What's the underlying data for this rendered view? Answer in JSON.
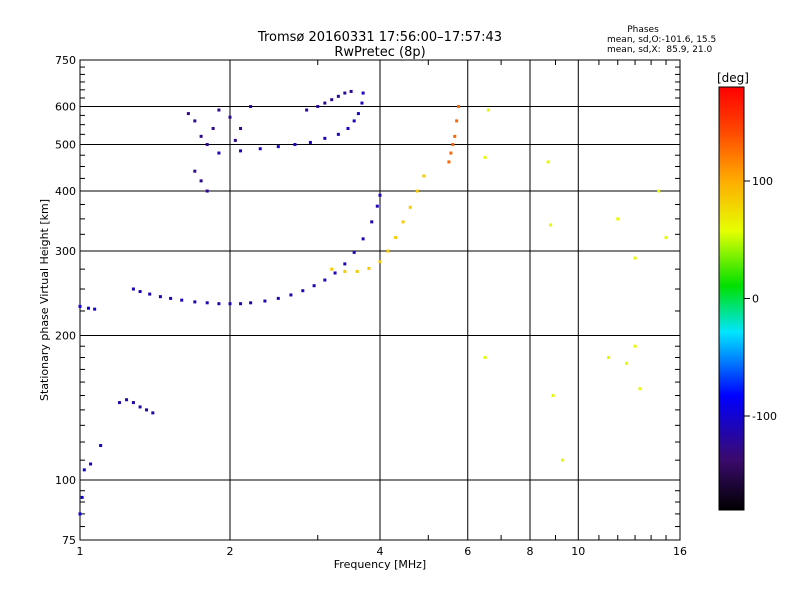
{
  "title": {
    "line1": "Tromsø 20160331 17:56:00–17:57:43",
    "line2": "RwPretec (8p)"
  },
  "phases_box": {
    "heading": "Phases",
    "line_o": "mean, sd,O:-101.6, 15.5",
    "line_x": "mean, sd,X:  85.9, 21.0"
  },
  "colorbar": {
    "unit": "[deg]",
    "tick_labels": [
      "100",
      "0",
      "-100"
    ],
    "tick_values": [
      100,
      0,
      -100
    ],
    "range": [
      -180,
      180
    ]
  },
  "chart_data": {
    "type": "scatter",
    "title": "Tromsø 20160331 17:56:00–17:57:43",
    "subtitle": "RwPretec (8p)",
    "xlabel": "Frequency [MHz]",
    "ylabel": "Stationary phase Virtual Height [km]",
    "x_scale": "log",
    "y_scale": "log",
    "xlim": [
      1,
      16
    ],
    "ylim": [
      75,
      750
    ],
    "x_ticks": [
      1,
      2,
      4,
      6,
      8,
      10,
      16
    ],
    "x_tick_labels": [
      "1",
      "2",
      "4",
      "6",
      "8",
      "10",
      "16"
    ],
    "y_ticks": [
      75,
      100,
      200,
      300,
      400,
      500,
      600,
      750
    ],
    "y_tick_labels": [
      "75",
      "100",
      "200",
      "300",
      "400",
      "500",
      "600",
      "750"
    ],
    "grid": true,
    "color_by": "phase (deg)",
    "series": [
      {
        "trace": "o_low",
        "color_phase": -110,
        "points": [
          [
            1.28,
            250
          ],
          [
            1.32,
            247
          ],
          [
            1.38,
            244
          ],
          [
            1.45,
            241
          ],
          [
            1.52,
            239
          ],
          [
            1.6,
            237
          ],
          [
            1.7,
            235
          ],
          [
            1.8,
            234
          ],
          [
            1.9,
            233
          ],
          [
            2.0,
            233
          ],
          [
            2.1,
            233
          ],
          [
            2.2,
            234
          ],
          [
            2.35,
            236
          ],
          [
            2.5,
            239
          ],
          [
            2.65,
            243
          ],
          [
            2.8,
            248
          ],
          [
            2.95,
            254
          ],
          [
            3.1,
            261
          ],
          [
            3.25,
            270
          ],
          [
            3.4,
            282
          ],
          [
            3.55,
            298
          ],
          [
            3.7,
            318
          ],
          [
            3.85,
            345
          ],
          [
            3.95,
            372
          ],
          [
            4.0,
            392
          ]
        ]
      },
      {
        "trace": "o_high_layer",
        "color_phase": -105,
        "points": [
          [
            1.9,
            480
          ],
          [
            2.1,
            485
          ],
          [
            2.3,
            490
          ],
          [
            2.5,
            495
          ],
          [
            2.7,
            500
          ],
          [
            2.9,
            505
          ],
          [
            3.1,
            515
          ],
          [
            3.3,
            525
          ],
          [
            3.45,
            540
          ],
          [
            3.55,
            560
          ],
          [
            3.62,
            580
          ],
          [
            3.68,
            610
          ],
          [
            3.7,
            640
          ]
        ]
      },
      {
        "trace": "spread_top",
        "color_phase": -120,
        "points": [
          [
            2.85,
            590
          ],
          [
            3.0,
            600
          ],
          [
            3.1,
            610
          ],
          [
            3.2,
            620
          ],
          [
            3.3,
            630
          ],
          [
            3.4,
            640
          ],
          [
            3.5,
            645
          ]
        ]
      },
      {
        "trace": "x_trace",
        "color_phase": 85,
        "points": [
          [
            3.2,
            275
          ],
          [
            3.4,
            272
          ],
          [
            3.6,
            272
          ],
          [
            3.8,
            276
          ],
          [
            4.0,
            285
          ],
          [
            4.15,
            300
          ],
          [
            4.3,
            320
          ],
          [
            4.45,
            345
          ],
          [
            4.6,
            370
          ],
          [
            4.75,
            400
          ],
          [
            4.9,
            430
          ]
        ]
      },
      {
        "trace": "x_top",
        "color_phase": 130,
        "points": [
          [
            5.5,
            460
          ],
          [
            5.55,
            480
          ],
          [
            5.6,
            500
          ],
          [
            5.65,
            520
          ],
          [
            5.7,
            560
          ],
          [
            5.75,
            600
          ]
        ]
      },
      {
        "trace": "low_echo",
        "color_phase": -115,
        "points": [
          [
            1.2,
            145
          ],
          [
            1.24,
            147
          ],
          [
            1.28,
            145
          ],
          [
            1.32,
            142
          ],
          [
            1.36,
            140
          ],
          [
            1.4,
            138
          ]
        ]
      },
      {
        "trace": "spread_f_cluster",
        "color_phase": -125,
        "points": [
          [
            1.65,
            580
          ],
          [
            1.7,
            560
          ],
          [
            1.75,
            520
          ],
          [
            1.8,
            500
          ],
          [
            1.85,
            540
          ],
          [
            1.9,
            590
          ],
          [
            2.0,
            570
          ],
          [
            2.05,
            510
          ],
          [
            2.1,
            540
          ],
          [
            2.2,
            600
          ],
          [
            1.7,
            440
          ],
          [
            1.75,
            420
          ],
          [
            1.8,
            400
          ]
        ]
      },
      {
        "trace": "scattered_high_f",
        "color_phase": 60,
        "points": [
          [
            6.6,
            590
          ],
          [
            6.5,
            470
          ],
          [
            8.7,
            460
          ],
          [
            8.8,
            340
          ],
          [
            12.0,
            350
          ],
          [
            13.0,
            290
          ],
          [
            14.5,
            400
          ],
          [
            15.0,
            320
          ],
          [
            6.5,
            180
          ],
          [
            8.9,
            150
          ],
          [
            9.3,
            110
          ],
          [
            11.5,
            180
          ],
          [
            12.5,
            175
          ],
          [
            13.0,
            190
          ],
          [
            13.3,
            155
          ]
        ]
      },
      {
        "trace": "near_origin",
        "color_phase": -100,
        "points": [
          [
            1.0,
            230
          ],
          [
            1.04,
            228
          ],
          [
            1.07,
            227
          ],
          [
            1.02,
            105
          ],
          [
            1.05,
            108
          ],
          [
            1.1,
            118
          ],
          [
            1.0,
            85
          ],
          [
            1.01,
            92
          ]
        ]
      }
    ]
  }
}
